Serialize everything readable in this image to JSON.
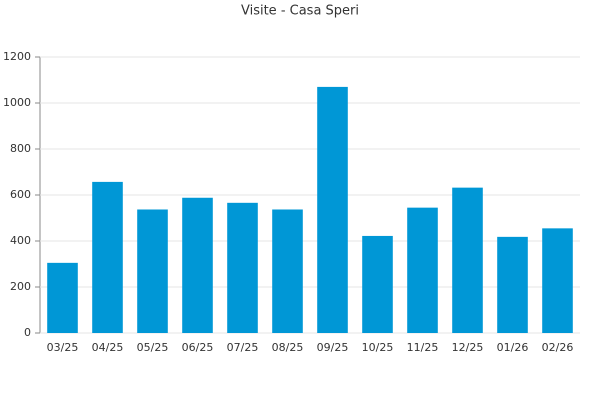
{
  "chart_data": {
    "type": "bar",
    "title": "Visite - Casa Speri",
    "categories": [
      "03/25",
      "04/25",
      "05/25",
      "06/25",
      "07/25",
      "08/25",
      "09/25",
      "10/25",
      "11/25",
      "12/25",
      "01/26",
      "02/26"
    ],
    "values": [
      305,
      657,
      537,
      588,
      566,
      537,
      1070,
      422,
      545,
      632,
      418,
      455
    ],
    "color": "#0097d6",
    "ylim": [
      0,
      1200
    ],
    "yticks": [
      0,
      200,
      400,
      600,
      800,
      1000,
      1200
    ],
    "grid": true
  }
}
